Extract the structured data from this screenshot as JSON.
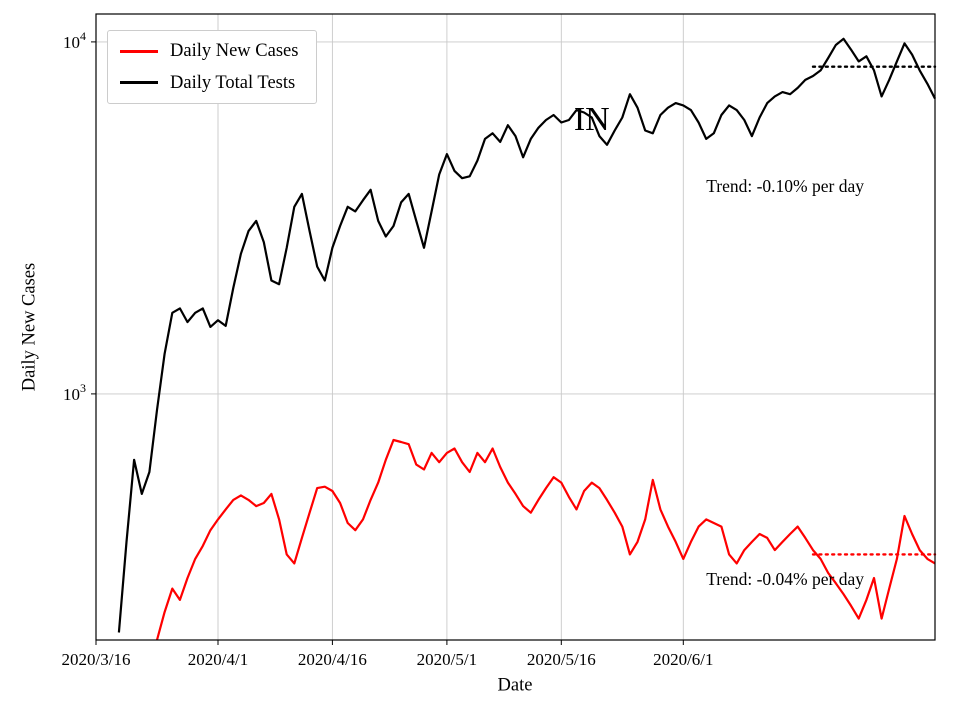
{
  "chart_data": {
    "type": "line",
    "title": "",
    "xlabel": "Date",
    "ylabel": "Daily New Cases",
    "y_scale": "log",
    "ylim": [
      200,
      12000
    ],
    "x_domain_days": [
      0,
      110
    ],
    "x_start_date": "2020/3/16",
    "grid": true,
    "x_ticks": [
      {
        "day": 0,
        "label": "2020/3/16"
      },
      {
        "day": 16,
        "label": "2020/4/1"
      },
      {
        "day": 31,
        "label": "2020/4/16"
      },
      {
        "day": 46,
        "label": "2020/5/1"
      },
      {
        "day": 61,
        "label": "2020/5/16"
      },
      {
        "day": 77,
        "label": "2020/6/1"
      }
    ],
    "y_ticks": [
      {
        "value": 1000,
        "mantissa": "10",
        "exponent": "3"
      },
      {
        "value": 10000,
        "mantissa": "10",
        "exponent": "4"
      }
    ],
    "legend": {
      "position": "top-left",
      "entries": [
        {
          "label": "Daily New Cases",
          "color": "#ff0000"
        },
        {
          "label": "Daily Total Tests",
          "color": "#000000"
        }
      ]
    },
    "watermark": {
      "text": "IN",
      "anchor": {
        "day": 65,
        "value": 5620
      }
    },
    "series": [
      {
        "name": "Daily Total Tests",
        "color": "#000000",
        "start_day": 3,
        "values": [
          210,
          380,
          650,
          520,
          600,
          900,
          1300,
          1700,
          1750,
          1600,
          1700,
          1750,
          1550,
          1620,
          1560,
          2000,
          2500,
          2900,
          3100,
          2700,
          2100,
          2050,
          2600,
          3400,
          3700,
          2900,
          2300,
          2100,
          2600,
          3000,
          3400,
          3300,
          3550,
          3800,
          3100,
          2800,
          3000,
          3500,
          3700,
          3100,
          2600,
          3300,
          4200,
          4800,
          4300,
          4100,
          4150,
          4600,
          5300,
          5500,
          5200,
          5800,
          5400,
          4700,
          5300,
          5700,
          6000,
          6200,
          5900,
          6000,
          6400,
          6300,
          6100,
          5400,
          5100,
          5600,
          6100,
          7100,
          6500,
          5600,
          5500,
          6200,
          6500,
          6700,
          6600,
          6400,
          5900,
          5300,
          5500,
          6200,
          6600,
          6400,
          6000,
          5400,
          6100,
          6700,
          7000,
          7200,
          7100,
          7400,
          7800,
          8000,
          8300,
          9000,
          9800,
          10200,
          9500,
          8800,
          9100,
          8300,
          7000,
          7800,
          8800,
          9900,
          9200,
          8300,
          7600,
          6900
        ]
      },
      {
        "name": "Daily New Cases",
        "color": "#ff0000",
        "start_day": 8,
        "values": [
          200,
          240,
          280,
          260,
          300,
          340,
          370,
          410,
          440,
          470,
          500,
          515,
          500,
          480,
          490,
          520,
          440,
          350,
          330,
          390,
          460,
          540,
          545,
          530,
          490,
          430,
          410,
          440,
          500,
          560,
          650,
          740,
          730,
          720,
          630,
          610,
          680,
          640,
          680,
          700,
          640,
          600,
          680,
          640,
          700,
          620,
          560,
          520,
          480,
          460,
          500,
          540,
          580,
          560,
          510,
          470,
          530,
          560,
          540,
          500,
          460,
          420,
          350,
          380,
          440,
          570,
          470,
          420,
          380,
          340,
          380,
          420,
          440,
          430,
          420,
          350,
          330,
          360,
          380,
          400,
          390,
          360,
          380,
          400,
          420,
          390,
          360,
          340,
          310,
          290,
          270,
          250,
          230,
          260,
          300,
          230,
          280,
          340,
          450,
          400,
          360,
          340,
          330
        ]
      }
    ],
    "trend_lines": [
      {
        "series": "Daily Total Tests",
        "color": "#000000",
        "value": 8500,
        "day_start": 94,
        "day_end": 110,
        "label": "Trend: -0.10% per day",
        "label_anchor": {
          "day": 80,
          "value": 3750
        }
      },
      {
        "series": "Daily New Cases",
        "color": "#ff0000",
        "value": 350,
        "day_start": 94,
        "day_end": 110,
        "label": "Trend: -0.04% per day",
        "label_anchor": {
          "day": 80,
          "value": 287
        }
      }
    ]
  }
}
